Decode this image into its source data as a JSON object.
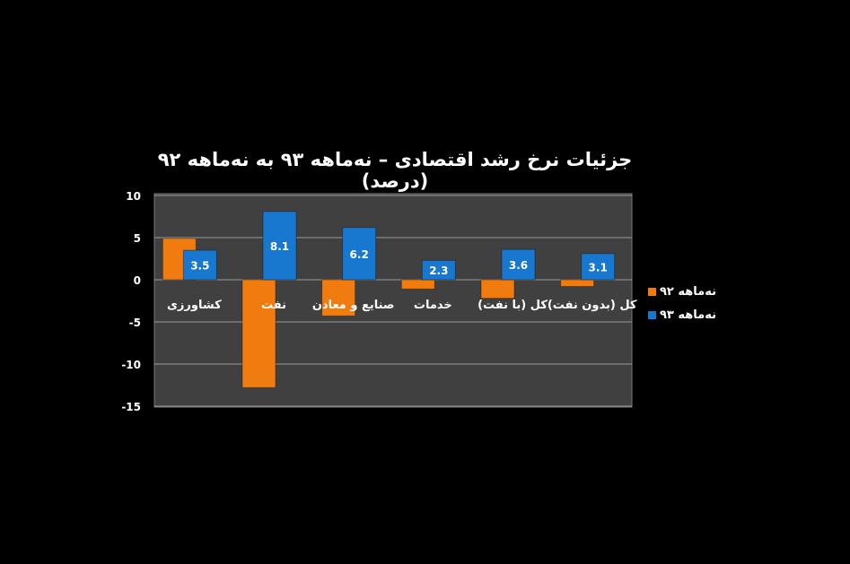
{
  "chart_data": {
    "type": "bar",
    "title": "جزئیات نرخ رشد اقتصادی – نه‌ماهه ۹۳ به نه‌ماهه ۹۲ (درصد)",
    "categories": [
      "کشاورزی",
      "نفت",
      "صنایع و معادن",
      "خدمات",
      "کل (با نفت)",
      "کل (بدون نفت)"
    ],
    "series": [
      {
        "name": "نه‌ماهه ۹۲",
        "color": "#F07C10",
        "values": [
          4.9,
          -12.8,
          -4.3,
          -1.1,
          -2.2,
          -0.8
        ],
        "labels": false
      },
      {
        "name": "نه‌ماهه ۹۳",
        "color": "#1878CF",
        "values": [
          3.5,
          8.1,
          6.2,
          2.3,
          3.6,
          3.1
        ],
        "labels": true
      }
    ],
    "ylim": [
      -15,
      10
    ],
    "yticks": [
      "10",
      "5",
      "0",
      "-5",
      "-10",
      "-15"
    ],
    "ytick_values": [
      10,
      5,
      0,
      -5,
      -10,
      -15
    ],
    "grid": true,
    "legend_position": "right",
    "plot_background": "#404040",
    "page_background": "#000000"
  }
}
